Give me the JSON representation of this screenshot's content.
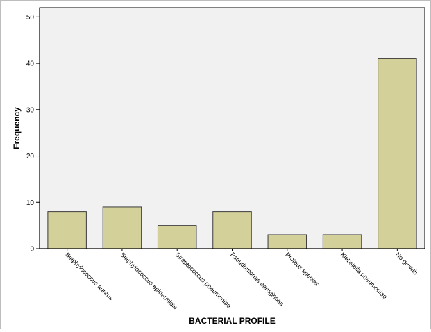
{
  "chart_data": {
    "type": "bar",
    "title": "",
    "xlabel": "BACTERIAL PROFILE",
    "ylabel": "Frequency",
    "categories": [
      "Staphylococcus aureus",
      "Staphylococcus epidermidis",
      "Streptococcus pneumoniae",
      "Pseudomonas aeruginosa",
      "Proteus species",
      "Klebsiella pneumoniae",
      "No growth"
    ],
    "values": [
      8,
      9,
      5,
      8,
      3,
      3,
      41
    ],
    "ylim": [
      0,
      52
    ],
    "yticks": [
      0,
      10,
      20,
      30,
      40,
      50
    ],
    "grid": false,
    "legend": "none",
    "colors": {
      "bar_fill": "#d4d09a",
      "bar_stroke": "#3a3a3a",
      "plot_background": "#f1f1f1",
      "axis": "#000000"
    }
  }
}
